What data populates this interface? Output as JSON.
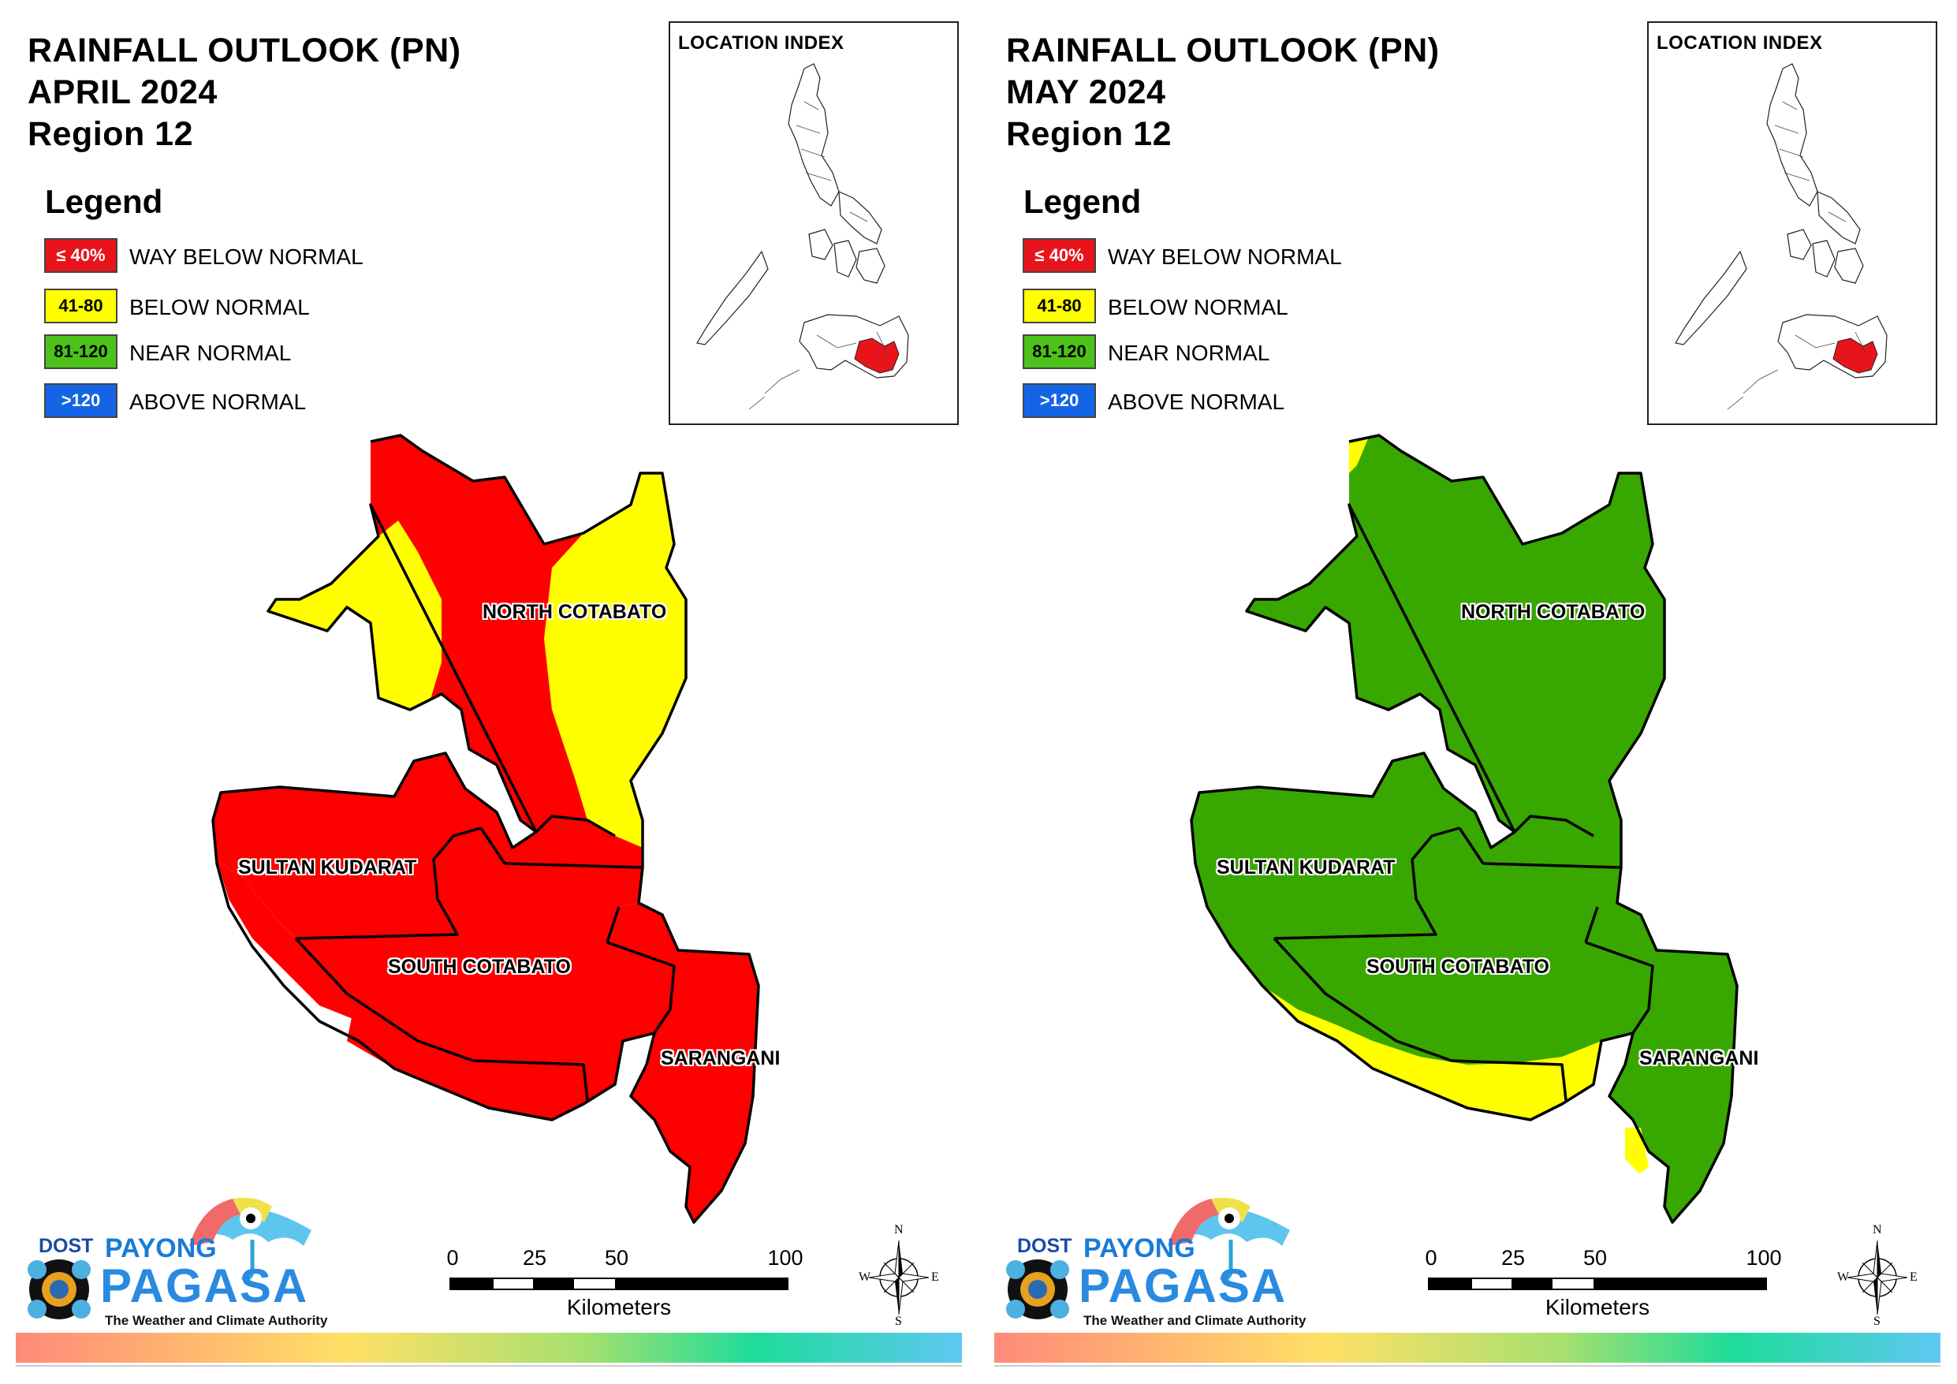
{
  "colors": {
    "way_below": "#ff0000",
    "below": "#ffff00",
    "near": "#38a800",
    "above": "#0055ee"
  },
  "legend": {
    "title": "Legend",
    "items": [
      {
        "range": "≤ 40%",
        "label": "WAY BELOW NORMAL",
        "color": "#e8141c",
        "text_color": "#ffffff"
      },
      {
        "range": "41-80",
        "label": "BELOW NORMAL",
        "color": "#ffff00",
        "text_color": "#000000"
      },
      {
        "range": "81-120",
        "label": "NEAR NORMAL",
        "color": "#4cc21a",
        "text_color": "#000000"
      },
      {
        "range": ">120",
        "label": "ABOVE NORMAL",
        "color": "#1464e6",
        "text_color": "#ffffff"
      }
    ]
  },
  "location_index": {
    "title": "LOCATION INDEX"
  },
  "provinces": {
    "north_cotabato": "NORTH COTABATO",
    "sultan_kudarat": "SULTAN KUDARAT",
    "south_cotabato": "SOUTH COTABATO",
    "sarangani": "SARANGANI"
  },
  "scale": {
    "ticks": [
      "0",
      "25",
      "50",
      "100"
    ],
    "unit": "Kilometers"
  },
  "compass": {
    "n": "N",
    "s": "S",
    "e": "E",
    "w": "W"
  },
  "logo": {
    "dost": "DOST",
    "payong": "PAYONG",
    "pagasa": "PAGASA",
    "tagline": "The Weather and Climate Authority"
  },
  "panels": [
    {
      "title_line1": "RAINFALL OUTLOOK (PN)",
      "title_line2": "APRIL 2024",
      "title_line3": "Region 12",
      "dominant_category": "WAY BELOW NORMAL",
      "secondary_category": "BELOW NORMAL"
    },
    {
      "title_line1": "RAINFALL OUTLOOK (PN)",
      "title_line2": "MAY 2024",
      "title_line3": "Region 12",
      "dominant_category": "NEAR NORMAL",
      "secondary_category": "BELOW NORMAL"
    }
  ]
}
